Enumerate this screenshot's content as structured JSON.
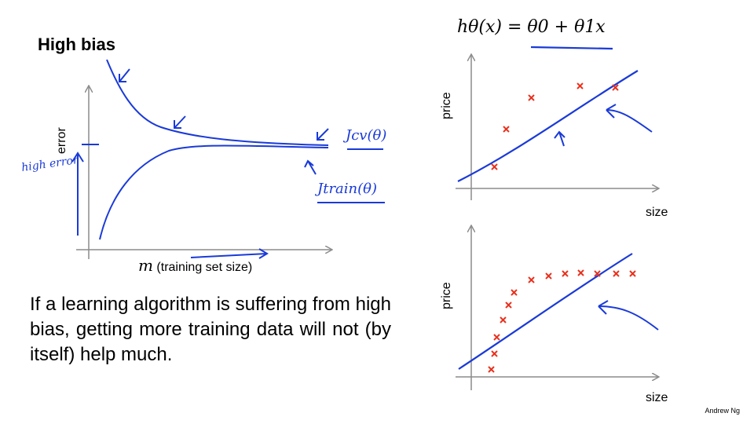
{
  "slide": {
    "title": "High bias",
    "body": "If a learning algorithm is suffering from high bias, getting more training data will not (by itself) help much.",
    "credit": "Andrew Ng"
  },
  "learning_curve": {
    "y_label": "error",
    "x_label_symbol": "m",
    "x_label_text": "(training set size)",
    "annotation_cv": "Jcv(θ)",
    "annotation_train": "Jtrain(θ)",
    "annotation_error": "high error"
  },
  "fit_plots": {
    "hypothesis": "hθ(x) = θ0 + θ1x",
    "y_label": "price",
    "x_label": "size"
  },
  "colors": {
    "ink": "#1a3ad8",
    "data_marker": "#e8321e",
    "axis": "#8c8c8c"
  }
}
